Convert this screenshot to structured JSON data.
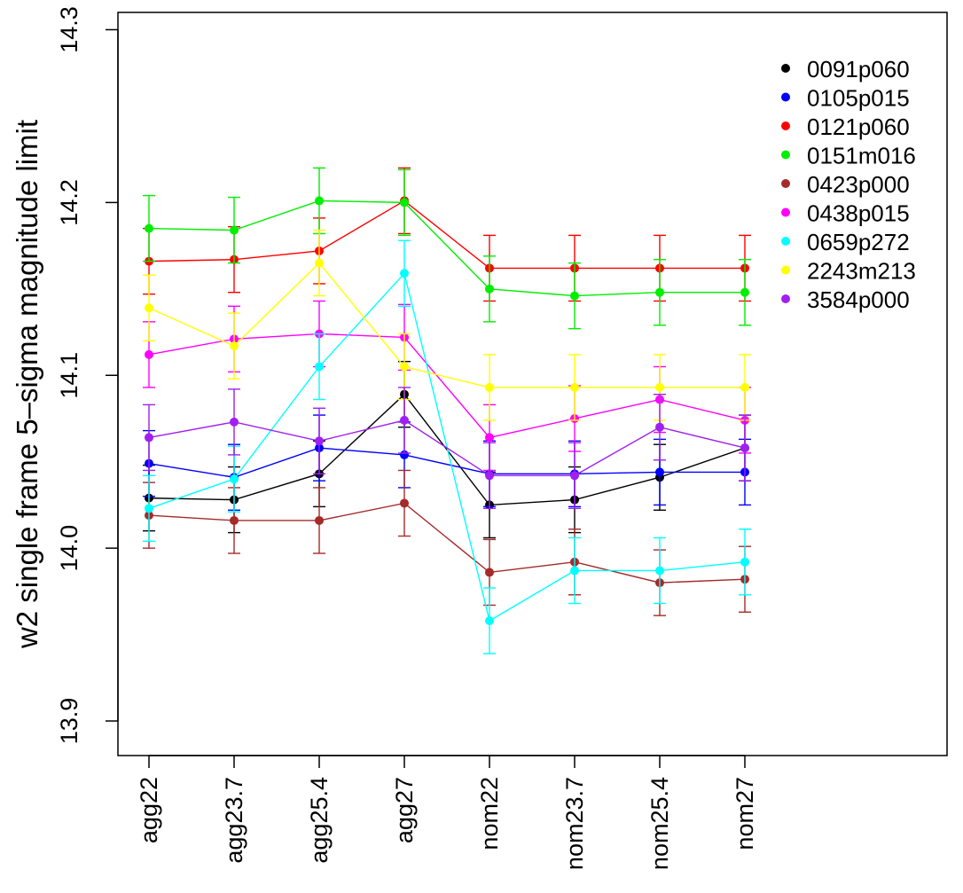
{
  "chart_data": {
    "type": "line",
    "title": "",
    "xlabel": "",
    "ylabel": "w2 single frame 5–sigma magnitude limit",
    "ylim": [
      13.88,
      14.31
    ],
    "yticks": [
      "13.9",
      "14.0",
      "14.1",
      "14.2",
      "14.3"
    ],
    "categories": [
      "agg22",
      "agg23.7",
      "agg25.4",
      "agg27",
      "nom22",
      "nom23.7",
      "nom25.4",
      "nom27"
    ],
    "error_bar_half_width": 0.019,
    "grid": false,
    "legend_position": "top-right",
    "series": [
      {
        "name": "0091p060",
        "color": "#000000",
        "values": [
          14.029,
          14.028,
          14.043,
          14.089,
          14.025,
          14.028,
          14.041,
          14.058
        ]
      },
      {
        "name": "0105p015",
        "color": "#0000ff",
        "values": [
          14.049,
          14.041,
          14.058,
          14.054,
          14.043,
          14.043,
          14.044,
          14.044
        ]
      },
      {
        "name": "0121p060",
        "color": "#ff0000",
        "values": [
          14.166,
          14.167,
          14.172,
          14.201,
          14.162,
          14.162,
          14.162,
          14.162
        ]
      },
      {
        "name": "0151m016",
        "color": "#00ee00",
        "values": [
          14.185,
          14.184,
          14.201,
          14.2,
          14.15,
          14.146,
          14.148,
          14.148
        ]
      },
      {
        "name": "0423p000",
        "color": "#a52a2a",
        "values": [
          14.019,
          14.016,
          14.016,
          14.026,
          13.986,
          13.992,
          13.98,
          13.982
        ]
      },
      {
        "name": "0438p015",
        "color": "#ff00ff",
        "values": [
          14.112,
          14.121,
          14.124,
          14.122,
          14.064,
          14.075,
          14.086,
          14.074
        ]
      },
      {
        "name": "0659p272",
        "color": "#00ffff",
        "values": [
          14.023,
          14.04,
          14.105,
          14.159,
          13.958,
          13.987,
          13.987,
          13.992
        ]
      },
      {
        "name": "2243m213",
        "color": "#ffff00",
        "values": [
          14.139,
          14.117,
          14.165,
          14.105,
          14.093,
          14.093,
          14.093,
          14.093
        ]
      },
      {
        "name": "3584p000",
        "color": "#a020f0",
        "values": [
          14.064,
          14.073,
          14.062,
          14.074,
          14.042,
          14.042,
          14.07,
          14.058
        ]
      }
    ]
  }
}
